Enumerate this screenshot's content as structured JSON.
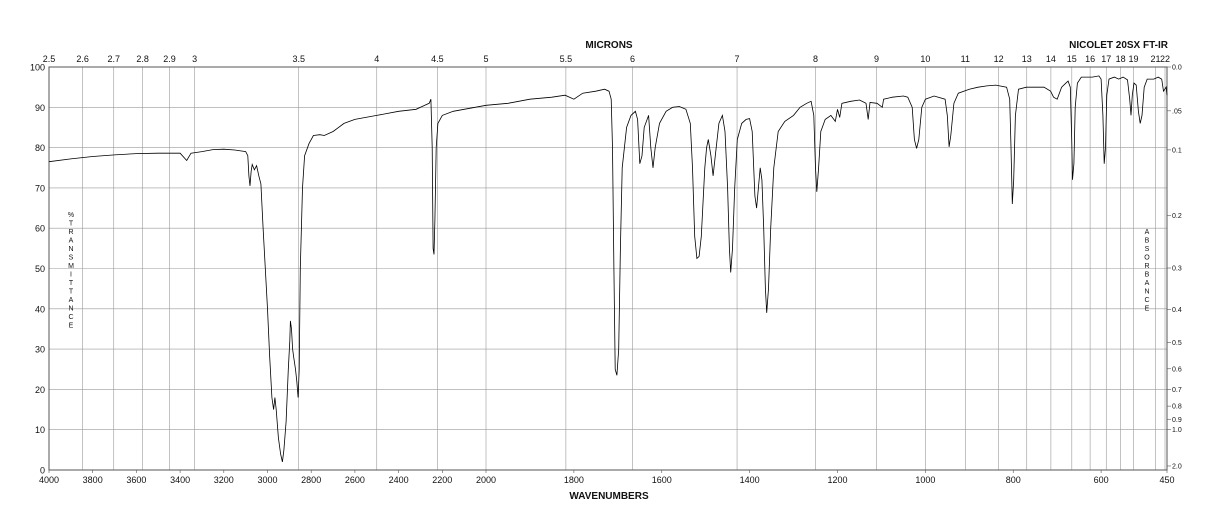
{
  "chart_data": {
    "type": "line",
    "title": "NICOLET 20SX FT-IR",
    "top_axis_label": "MICRONS",
    "xlabel": "WAVENUMBERS",
    "ylabel_left": "%TRANSMITTANCE",
    "ylabel_right": "ABSORBANCE",
    "xlim": [
      4000,
      450
    ],
    "ylim": [
      0,
      100
    ],
    "x_break": 2000,
    "grid": true,
    "x_ticks": [
      4000,
      3800,
      3600,
      3400,
      3200,
      3000,
      2800,
      2600,
      2400,
      2200,
      2000,
      1800,
      1600,
      1400,
      1200,
      1000,
      800,
      600,
      450
    ],
    "y_ticks": [
      0,
      10,
      20,
      30,
      40,
      50,
      60,
      70,
      80,
      90,
      100
    ],
    "micron_ticks": [
      2.5,
      2.6,
      2.7,
      2.8,
      2.9,
      3,
      3.5,
      4,
      4.5,
      5,
      5.5,
      6,
      7,
      8,
      9,
      10,
      11,
      12,
      13,
      14,
      15,
      16,
      17,
      18,
      19,
      21,
      22
    ],
    "absorbance_ticks": [
      "0.0",
      ".05",
      "0.1",
      "0.2",
      "0.3",
      "0.4",
      "0.5",
      "0.6",
      "0.7",
      "0.8",
      "0.9",
      "1.0",
      "2.0"
    ],
    "series": [
      {
        "points": [
          [
            4000,
            76.5
          ],
          [
            3900,
            77.2
          ],
          [
            3800,
            77.8
          ],
          [
            3700,
            78.2
          ],
          [
            3600,
            78.5
          ],
          [
            3500,
            78.6
          ],
          [
            3400,
            78.6
          ],
          [
            3370,
            76.8
          ],
          [
            3350,
            78.6
          ],
          [
            3300,
            79.0
          ],
          [
            3250,
            79.5
          ],
          [
            3200,
            79.6
          ],
          [
            3150,
            79.4
          ],
          [
            3100,
            79.0
          ],
          [
            3090,
            78.0
          ],
          [
            3085,
            73.0
          ],
          [
            3080,
            70.5
          ],
          [
            3075,
            74.0
          ],
          [
            3070,
            75.8
          ],
          [
            3060,
            74.5
          ],
          [
            3050,
            75.5
          ],
          [
            3040,
            73.0
          ],
          [
            3030,
            71.0
          ],
          [
            3020,
            60.0
          ],
          [
            3010,
            50.0
          ],
          [
            3000,
            40.0
          ],
          [
            2990,
            28.0
          ],
          [
            2980,
            18.0
          ],
          [
            2972,
            15.0
          ],
          [
            2966,
            18.0
          ],
          [
            2960,
            15.0
          ],
          [
            2950,
            8.0
          ],
          [
            2940,
            4.0
          ],
          [
            2932,
            2.0
          ],
          [
            2925,
            5.0
          ],
          [
            2915,
            12.0
          ],
          [
            2905,
            25.0
          ],
          [
            2898,
            32.0
          ],
          [
            2895,
            37.0
          ],
          [
            2890,
            35.0
          ],
          [
            2885,
            30.0
          ],
          [
            2880,
            28.0
          ],
          [
            2872,
            25.0
          ],
          [
            2866,
            22.0
          ],
          [
            2860,
            18.0
          ],
          [
            2855,
            25.0
          ],
          [
            2850,
            50.0
          ],
          [
            2840,
            70.0
          ],
          [
            2830,
            78.0
          ],
          [
            2810,
            81.0
          ],
          [
            2790,
            83.0
          ],
          [
            2760,
            83.2
          ],
          [
            2740,
            83.0
          ],
          [
            2700,
            84.0
          ],
          [
            2650,
            86.0
          ],
          [
            2600,
            87.0
          ],
          [
            2500,
            88.0
          ],
          [
            2400,
            89.0
          ],
          [
            2320,
            89.5
          ],
          [
            2280,
            90.5
          ],
          [
            2260,
            91.0
          ],
          [
            2252,
            92.0
          ],
          [
            2246,
            80.0
          ],
          [
            2242,
            55.0
          ],
          [
            2238,
            53.5
          ],
          [
            2234,
            62.0
          ],
          [
            2228,
            80.0
          ],
          [
            2220,
            86.0
          ],
          [
            2200,
            88.0
          ],
          [
            2150,
            89.0
          ],
          [
            2100,
            89.5
          ],
          [
            2050,
            90.0
          ],
          [
            2000,
            90.5
          ],
          [
            1950,
            91.0
          ],
          [
            1900,
            92.0
          ],
          [
            1850,
            92.5
          ],
          [
            1820,
            93.0
          ],
          [
            1800,
            92.0
          ],
          [
            1780,
            93.5
          ],
          [
            1750,
            94.0
          ],
          [
            1730,
            94.5
          ],
          [
            1720,
            94.0
          ],
          [
            1715,
            92.0
          ],
          [
            1712,
            80.0
          ],
          [
            1709,
            50.0
          ],
          [
            1706,
            25.0
          ],
          [
            1702,
            23.5
          ],
          [
            1698,
            30.0
          ],
          [
            1694,
            55.0
          ],
          [
            1690,
            75.0
          ],
          [
            1680,
            85.0
          ],
          [
            1670,
            88.0
          ],
          [
            1660,
            89.0
          ],
          [
            1655,
            87.0
          ],
          [
            1650,
            76.0
          ],
          [
            1645,
            78.0
          ],
          [
            1640,
            85.0
          ],
          [
            1630,
            88.0
          ],
          [
            1625,
            80.0
          ],
          [
            1620,
            75.0
          ],
          [
            1615,
            80.0
          ],
          [
            1605,
            86.0
          ],
          [
            1590,
            89.0
          ],
          [
            1575,
            90.0
          ],
          [
            1560,
            90.2
          ],
          [
            1545,
            89.5
          ],
          [
            1535,
            86.0
          ],
          [
            1530,
            75.0
          ],
          [
            1525,
            58.0
          ],
          [
            1520,
            52.5
          ],
          [
            1515,
            53.0
          ],
          [
            1510,
            58.0
          ],
          [
            1502,
            75.0
          ],
          [
            1498,
            80.0
          ],
          [
            1494,
            82.0
          ],
          [
            1488,
            78.0
          ],
          [
            1483,
            73.0
          ],
          [
            1478,
            78.0
          ],
          [
            1470,
            86.0
          ],
          [
            1462,
            88.0
          ],
          [
            1456,
            84.0
          ],
          [
            1450,
            70.0
          ],
          [
            1446,
            55.0
          ],
          [
            1443,
            49.0
          ],
          [
            1439,
            55.0
          ],
          [
            1434,
            70.0
          ],
          [
            1428,
            82.0
          ],
          [
            1418,
            86.0
          ],
          [
            1408,
            87.0
          ],
          [
            1400,
            87.2
          ],
          [
            1394,
            84.0
          ],
          [
            1388,
            68.0
          ],
          [
            1384,
            65.0
          ],
          [
            1380,
            70.0
          ],
          [
            1376,
            75.0
          ],
          [
            1372,
            72.0
          ],
          [
            1368,
            60.0
          ],
          [
            1364,
            45.0
          ],
          [
            1361,
            39.0
          ],
          [
            1357,
            45.0
          ],
          [
            1352,
            60.0
          ],
          [
            1345,
            75.0
          ],
          [
            1335,
            84.0
          ],
          [
            1320,
            86.5
          ],
          [
            1300,
            88.0
          ],
          [
            1285,
            90.0
          ],
          [
            1270,
            91.0
          ],
          [
            1260,
            91.5
          ],
          [
            1254,
            88.0
          ],
          [
            1250,
            75.0
          ],
          [
            1247,
            69.0
          ],
          [
            1243,
            75.0
          ],
          [
            1238,
            84.0
          ],
          [
            1228,
            87.0
          ],
          [
            1215,
            88.0
          ],
          [
            1205,
            86.5
          ],
          [
            1200,
            89.5
          ],
          [
            1195,
            87.5
          ],
          [
            1190,
            91.0
          ],
          [
            1170,
            91.5
          ],
          [
            1150,
            91.8
          ],
          [
            1135,
            91.0
          ],
          [
            1130,
            87.0
          ],
          [
            1126,
            91.2
          ],
          [
            1110,
            91.0
          ],
          [
            1098,
            90.0
          ],
          [
            1095,
            92.0
          ],
          [
            1075,
            92.5
          ],
          [
            1050,
            92.8
          ],
          [
            1040,
            92.5
          ],
          [
            1030,
            90.0
          ],
          [
            1025,
            82.0
          ],
          [
            1020,
            79.8
          ],
          [
            1015,
            82.0
          ],
          [
            1008,
            90.0
          ],
          [
            1000,
            92.0
          ],
          [
            980,
            92.8
          ],
          [
            955,
            92.0
          ],
          [
            950,
            88.0
          ],
          [
            946,
            80.2
          ],
          [
            942,
            83.0
          ],
          [
            935,
            91.0
          ],
          [
            925,
            93.5
          ],
          [
            900,
            94.5
          ],
          [
            880,
            95.0
          ],
          [
            860,
            95.3
          ],
          [
            840,
            95.5
          ],
          [
            815,
            95.0
          ],
          [
            808,
            92.0
          ],
          [
            805,
            80.0
          ],
          [
            802,
            66.0
          ],
          [
            799,
            72.0
          ],
          [
            795,
            88.0
          ],
          [
            788,
            94.5
          ],
          [
            770,
            95.0
          ],
          [
            750,
            95.0
          ],
          [
            730,
            95.0
          ],
          [
            715,
            94.0
          ],
          [
            708,
            92.5
          ],
          [
            700,
            92.0
          ],
          [
            690,
            95.0
          ],
          [
            680,
            96.0
          ],
          [
            675,
            96.5
          ],
          [
            670,
            95.0
          ],
          [
            667,
            82.0
          ],
          [
            665,
            72.0
          ],
          [
            662,
            76.0
          ],
          [
            659,
            90.0
          ],
          [
            654,
            96.0
          ],
          [
            645,
            97.5
          ],
          [
            620,
            97.5
          ],
          [
            605,
            97.8
          ],
          [
            600,
            97.0
          ],
          [
            596,
            88.0
          ],
          [
            593,
            76.0
          ],
          [
            590,
            80.0
          ],
          [
            587,
            93.0
          ],
          [
            582,
            97.0
          ],
          [
            570,
            97.5
          ],
          [
            560,
            97.0
          ],
          [
            550,
            97.5
          ],
          [
            540,
            96.8
          ],
          [
            535,
            92.0
          ],
          [
            532,
            88.0
          ],
          [
            529,
            93.0
          ],
          [
            525,
            96.0
          ],
          [
            520,
            95.5
          ],
          [
            515,
            89.0
          ],
          [
            511,
            86.0
          ],
          [
            507,
            88.0
          ],
          [
            502,
            95.0
          ],
          [
            495,
            97.0
          ],
          [
            480,
            97.0
          ],
          [
            470,
            97.5
          ],
          [
            462,
            97.0
          ],
          [
            458,
            94.0
          ],
          [
            455,
            94.5
          ],
          [
            452,
            95.0
          ],
          [
            450,
            93.0
          ]
        ]
      }
    ]
  }
}
